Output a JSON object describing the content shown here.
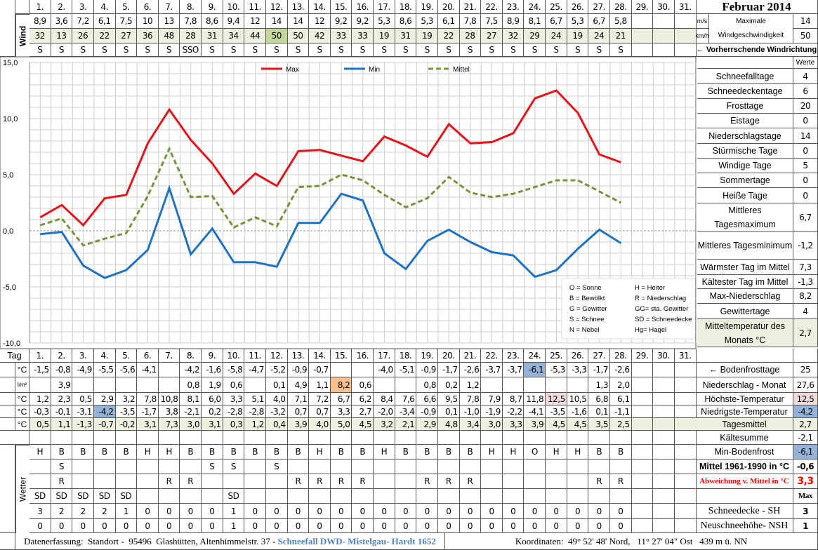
{
  "title": "Februar 2014",
  "days": [
    "1.",
    "2.",
    "3.",
    "4.",
    "5.",
    "6.",
    "7.",
    "8.",
    "9.",
    "10.",
    "11.",
    "12.",
    "13.",
    "14.",
    "15.",
    "16.",
    "17.",
    "18.",
    "19.",
    "20.",
    "21.",
    "22.",
    "23.",
    "24.",
    "25.",
    "26.",
    "27.",
    "28.",
    "29.",
    "30.",
    "31."
  ],
  "wind": {
    "label": "Wind",
    "ms": [
      "8,9",
      "3,6",
      "7,2",
      "6,1",
      "7,5",
      "10",
      "13",
      "7,8",
      "8,6",
      "9,4",
      "12",
      "14",
      "14",
      "12",
      "9,2",
      "9,2",
      "5,3",
      "8,6",
      "5,3",
      "6,1",
      "7,8",
      "7,5",
      "8,9",
      "8,1",
      "6,7",
      "5,3",
      "6,7",
      "5,8"
    ],
    "kmh": [
      "32",
      "13",
      "26",
      "22",
      "27",
      "36",
      "48",
      "28",
      "31",
      "34",
      "44",
      "50",
      "50",
      "42",
      "33",
      "33",
      "19",
      "31",
      "19",
      "22",
      "28",
      "27",
      "32",
      "29",
      "24",
      "19",
      "24",
      "21"
    ],
    "direction": [
      "S",
      "S",
      "S",
      "S",
      "S",
      "S",
      "S",
      "SSO",
      "S",
      "S",
      "S",
      "S",
      "S",
      "S",
      "S",
      "S",
      "S",
      "S",
      "S",
      "S",
      "S",
      "S",
      "S",
      "S",
      "S",
      "S",
      "S",
      "S"
    ],
    "unit_ms": "m/s",
    "unit_kmh": "km/h",
    "max_label": "Maximale Windgeschwindigkeit",
    "max_ms": "14",
    "max_kmh": "50",
    "prevailing_label": "← Vorherrschende Windrichtung"
  },
  "colors": {
    "max": "#e3141b",
    "min": "#1f72c1",
    "mittel": "#77933c",
    "highlight_green": "#c4d79b",
    "highlight_blue": "#95b3d7",
    "highlight_orange": "#fabf8f",
    "highlight_pink": "#f2dcdb",
    "row_green": "#ebf1de"
  },
  "chart_data": {
    "type": "line",
    "x": [
      1,
      2,
      3,
      4,
      5,
      6,
      7,
      8,
      9,
      10,
      11,
      12,
      13,
      14,
      15,
      16,
      17,
      18,
      19,
      20,
      21,
      22,
      23,
      24,
      25,
      26,
      27,
      28
    ],
    "ylim": [
      -10,
      15
    ],
    "yticks": [
      "15,0",
      "10,0",
      "5,0",
      "0,0",
      "-5,0",
      "-10,0"
    ],
    "grid": true,
    "legend": "top",
    "series": [
      {
        "name": "Max",
        "style": "solid",
        "values": [
          1.2,
          2.3,
          0.5,
          2.9,
          3.2,
          7.8,
          10.8,
          8.1,
          6.0,
          3.3,
          5.1,
          4.0,
          7.1,
          7.2,
          6.7,
          6.2,
          8.4,
          7.6,
          6.6,
          9.5,
          7.8,
          7.9,
          8.7,
          11.8,
          12.5,
          10.5,
          6.8,
          6.1
        ]
      },
      {
        "name": "Min",
        "style": "solid",
        "values": [
          -0.3,
          -0.1,
          -3.1,
          -4.2,
          -3.5,
          -1.7,
          3.8,
          -2.1,
          0.2,
          -2.8,
          -2.8,
          -3.2,
          0.7,
          0.7,
          3.3,
          2.7,
          -2.0,
          -3.4,
          -0.9,
          0.1,
          -1.0,
          -1.9,
          -2.2,
          -4.1,
          -3.5,
          -1.6,
          0.1,
          -1.1
        ]
      },
      {
        "name": "Mittel",
        "style": "dashed",
        "values": [
          0.5,
          1.1,
          -1.3,
          -0.7,
          -0.2,
          3.1,
          7.3,
          3.0,
          3.1,
          0.3,
          1.2,
          0.4,
          3.9,
          4.0,
          5.0,
          4.5,
          3.2,
          2.1,
          2.9,
          4.8,
          3.4,
          3.0,
          3.3,
          3.9,
          4.5,
          4.5,
          3.5,
          2.5
        ]
      }
    ]
  },
  "weather_key": [
    "O = Sonne",
    "H = Heiter",
    "B = Bewölkt",
    "R = Niederschlag",
    "G = Gewitter",
    "GG= sta. Gewitter",
    "S = Schnee",
    "SD = Schneedecke",
    "N = Nebel",
    "Hg= Hagel"
  ],
  "stats": {
    "header": "Werte",
    "rows": [
      {
        "label": "Schneefalltage",
        "value": "4"
      },
      {
        "label": "Schneedeckentage",
        "value": "6"
      },
      {
        "label": "Frosttage",
        "value": "20"
      },
      {
        "label": "Eistage",
        "value": "0"
      },
      {
        "label": "Niederschlagstage",
        "value": "14"
      },
      {
        "label": "Stürmische Tage",
        "value": "0"
      },
      {
        "label": "Windige Tage",
        "value": "5"
      },
      {
        "label": "Sommertage",
        "value": "0"
      },
      {
        "label": "Heiße Tage",
        "value": "0"
      },
      {
        "label": "Mittleres Tagesmaximum",
        "value": "6,7"
      },
      {
        "label": "Mittleres Tagesminimum",
        "value": "-1,2"
      },
      {
        "label": "Wärmster Tag im Mittel",
        "value": "7,3"
      },
      {
        "label": "Kältester Tag im Mittel",
        "value": "-1,3"
      },
      {
        "label": "Max-Niederschlag",
        "value": "8,2"
      },
      {
        "label": "Gewittertage",
        "value": "4"
      },
      {
        "label": "Mitteltemperatur des Monats °C",
        "value": "2,7"
      }
    ]
  },
  "table": {
    "tag_label": "Tag",
    "wetter_label": "Wetter",
    "units": [
      "°C",
      "l/m²",
      "°C",
      "°C",
      "°C"
    ],
    "ground_frost": [
      "-1,5",
      "-0,8",
      "-4,9",
      "-5,5",
      "-5,6",
      "-4,1",
      "",
      "-4,2",
      "-1,6",
      "-5,8",
      "-4,7",
      "-5,2",
      "-0,9",
      "-0,7",
      "",
      "",
      "-4,0",
      "-5,1",
      "-0,9",
      "-1,7",
      "-2,6",
      "-3,7",
      "-3,7",
      "-6,1",
      "-5,3",
      "-3,3",
      "-1,7",
      "-2,6"
    ],
    "precip": [
      "",
      "3,9",
      "",
      "",
      "",
      "",
      "",
      "0,8",
      "1,9",
      "0,6",
      "",
      "0,1",
      "4,9",
      "1,1",
      "8,2",
      "0,6",
      "",
      "",
      "0,8",
      "0,2",
      "1,2",
      "",
      "",
      "",
      "",
      "",
      "1,3",
      "2,0"
    ],
    "max": [
      "1,2",
      "2,3",
      "0,5",
      "2,9",
      "3,2",
      "7,8",
      "10,8",
      "8,1",
      "6,0",
      "3,3",
      "5,1",
      "4,0",
      "7,1",
      "7,2",
      "6,7",
      "6,2",
      "8,4",
      "7,6",
      "6,6",
      "9,5",
      "7,8",
      "7,9",
      "8,7",
      "11,8",
      "12,5",
      "10,5",
      "6,8",
      "6,1"
    ],
    "min": [
      "-0,3",
      "-0,1",
      "-3,1",
      "-4,2",
      "-3,5",
      "-1,7",
      "3,8",
      "-2,1",
      "0,2",
      "-2,8",
      "-2,8",
      "-3,2",
      "0,7",
      "0,7",
      "3,3",
      "2,7",
      "-2,0",
      "-3,4",
      "-0,9",
      "0,1",
      "-1,0",
      "-1,9",
      "-2,2",
      "-4,1",
      "-3,5",
      "-1,6",
      "0,1",
      "-1,1"
    ],
    "mean": [
      "0,5",
      "1,1",
      "-1,3",
      "-0,7",
      "-0,2",
      "3,1",
      "7,3",
      "3,0",
      "3,1",
      "0,3",
      "1,2",
      "0,4",
      "3,9",
      "4,0",
      "5,0",
      "4,5",
      "3,2",
      "2,1",
      "2,9",
      "4,8",
      "3,4",
      "3,0",
      "3,3",
      "3,9",
      "4,5",
      "4,5",
      "3,5",
      "2,5"
    ],
    "weather1": [
      "H",
      "B",
      "B",
      "B",
      "B",
      "H",
      "H",
      "B",
      "B",
      "B",
      "B",
      "B",
      "B",
      "H",
      "B",
      "B",
      "H",
      "B",
      "B",
      "B",
      "B",
      "H",
      "H",
      "O",
      "H",
      "H",
      "B",
      "B"
    ],
    "weather2": [
      "",
      "S",
      "",
      "",
      "",
      "",
      "",
      "",
      "S",
      "S",
      "",
      "S",
      "",
      "",
      "",
      "",
      "",
      "",
      "",
      "",
      "",
      "",
      "",
      "",
      "",
      "",
      "",
      ""
    ],
    "weather3": [
      "",
      "R",
      "",
      "",
      "",
      "",
      "R",
      "R",
      "",
      "",
      "",
      "",
      "R",
      "R",
      "R",
      "R",
      "",
      "",
      "R",
      "R",
      "R",
      "",
      "",
      "",
      "",
      "",
      "R",
      "R"
    ],
    "weather4": [
      "SD",
      "SD",
      "SD",
      "SD",
      "SD",
      "",
      "",
      "",
      "",
      "SD",
      "",
      "",
      "",
      "",
      "",
      "",
      "",
      "",
      "",
      "",
      "",
      "",
      "",
      "",
      "",
      "",
      "",
      ""
    ],
    "snow_depth": [
      "3",
      "2",
      "2",
      "2",
      "1",
      "0",
      "0",
      "0",
      "0",
      "1",
      "0",
      "0",
      "0",
      "0",
      "0",
      "0",
      "0",
      "0",
      "0",
      "0",
      "0",
      "0",
      "0",
      "0",
      "0",
      "0",
      "0",
      "0"
    ],
    "new_snow": [
      "0",
      "0",
      "0",
      "0",
      "0",
      "0",
      "0",
      "0",
      "0",
      "1",
      "0",
      "0",
      "0",
      "0",
      "0",
      "0",
      "0",
      "0",
      "0",
      "0",
      "0",
      "0",
      "0",
      "0",
      "0",
      "0",
      "0",
      "0"
    ]
  },
  "summary": [
    {
      "label": "",
      "value": ""
    },
    {
      "label": "← Bodenfrosttage",
      "value": "25"
    },
    {
      "label": "Niederschlag - Monat",
      "value": "27,6"
    },
    {
      "label": "Höchste-Temperatur",
      "value": "12,5"
    },
    {
      "label": "Niedrigste-Temperatur",
      "value": "-4,2"
    },
    {
      "label": "Tagesmittel",
      "value": "2,7"
    },
    {
      "label": "Kältesumme",
      "value": "-2,1"
    },
    {
      "label": "Min-Bodenfrost",
      "value": "-6,1"
    },
    {
      "label": "Mittel 1961-1990 in °C",
      "value": "-0,6"
    },
    {
      "label": "Abweichung v. Mittel in °C",
      "value": "3,3"
    },
    {
      "label": "",
      "value": "Max"
    },
    {
      "label": "Schneedecke -   SH",
      "value": "3"
    },
    {
      "label": "Neuschneehöhe- NSH",
      "value": "1"
    }
  ],
  "footer": {
    "location": "Datenerfassung:  Standort -  95496  Glashütten, Altenhimmelstr. 37 - ",
    "source": "Schneefall DWD- Mistelgau- Hardt 1652",
    "coordinates": "Koordinaten:  49° 52' 48' Nord,   11° 27' 04\" Ost   439 m ü. NN"
  }
}
